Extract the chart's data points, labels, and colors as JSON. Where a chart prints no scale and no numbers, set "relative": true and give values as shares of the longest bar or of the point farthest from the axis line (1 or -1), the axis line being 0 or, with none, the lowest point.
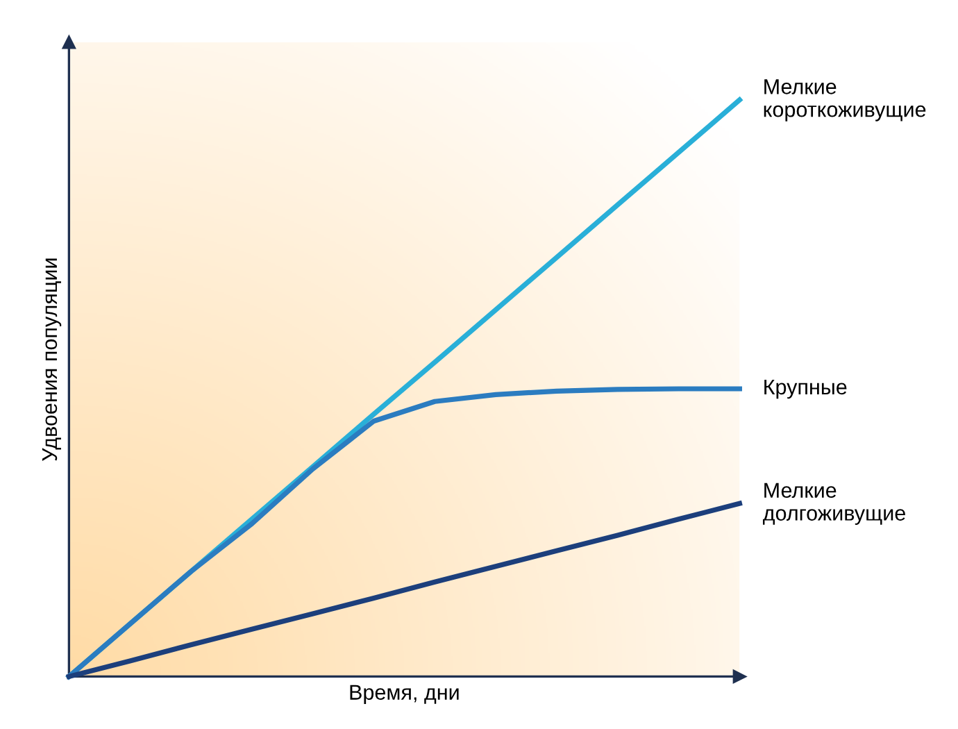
{
  "chart_data": {
    "type": "line",
    "relative": true,
    "xlabel": "Время, дни",
    "ylabel": "Удвоения популяции",
    "categories": [
      null,
      null,
      null,
      null,
      null,
      null,
      null,
      null,
      null,
      null,
      null,
      null
    ],
    "marker": "none",
    "line_style": "solid",
    "legend": false,
    "series": [
      {
        "name": "Мелкие\nкороткоживущие",
        "color": "#29afd8",
        "values": [
          0,
          0.091,
          0.182,
          0.273,
          0.364,
          0.455,
          0.545,
          0.636,
          0.727,
          0.818,
          0.909,
          1
        ]
      },
      {
        "name": "Крупные",
        "color": "#2b7cc0",
        "values": [
          0,
          0.091,
          0.182,
          0.265,
          0.36,
          0.443,
          0.477,
          0.489,
          0.495,
          0.498,
          0.499,
          0.499
        ]
      },
      {
        "name": "Мелкие\nдолгоживущие",
        "color": "#1c3f7c",
        "values": [
          0,
          0.027,
          0.055,
          0.082,
          0.109,
          0.136,
          0.164,
          0.191,
          0.218,
          0.245,
          0.273,
          0.3
        ]
      }
    ]
  }
}
